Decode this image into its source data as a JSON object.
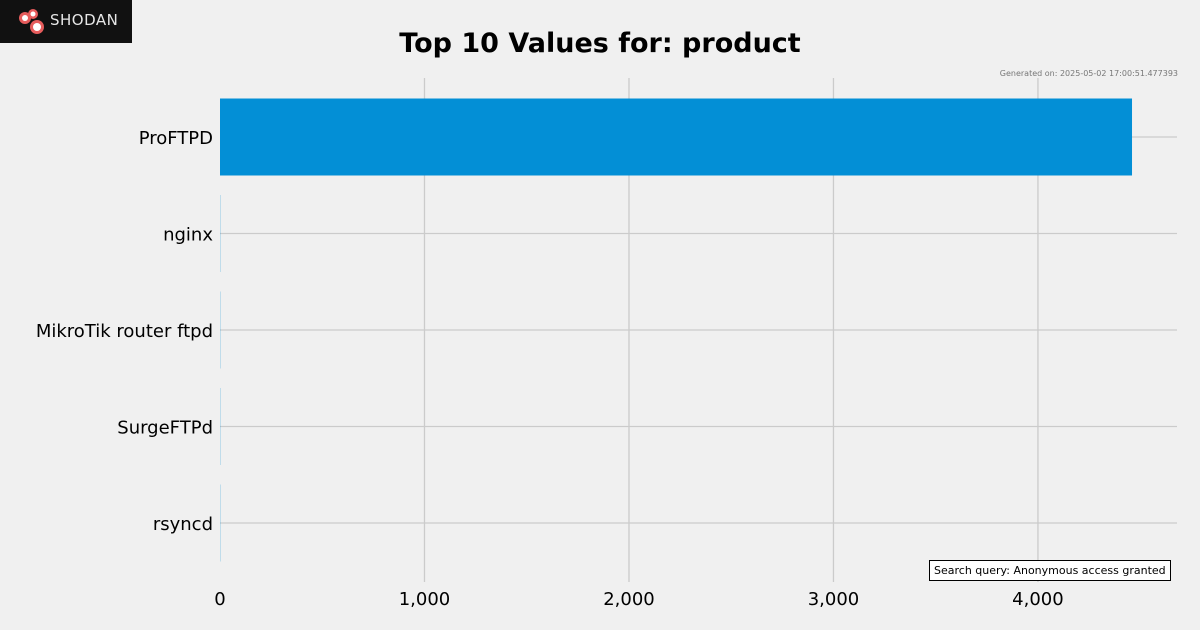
{
  "brand": {
    "name": "Shodan",
    "display": "SHODAN",
    "logo_icon": "shodan-logo-icon"
  },
  "generated_text": "Generated on: 2025-05-02 17:00:51.477393",
  "search_query_text": "Search query: Anonymous access granted",
  "colors": {
    "bar": "#038fd6",
    "background": "#f0f0f0",
    "grid": "#cbcbcb"
  },
  "chart_data": {
    "type": "bar",
    "orientation": "horizontal",
    "title": "Top 10 Values for: product",
    "xlabel": "",
    "ylabel": "",
    "categories": [
      "ProFTPD",
      "nginx",
      "MikroTik router ftpd",
      "SurgeFTPd",
      "rsyncd"
    ],
    "values": [
      4460,
      1,
      1,
      1,
      1
    ],
    "xlim": [
      0,
      4680
    ],
    "xticks": [
      0,
      1000,
      2000,
      3000,
      4000
    ],
    "xtick_labels": [
      "0",
      "1,000",
      "2,000",
      "3,000",
      "4,000"
    ],
    "grid": true
  }
}
